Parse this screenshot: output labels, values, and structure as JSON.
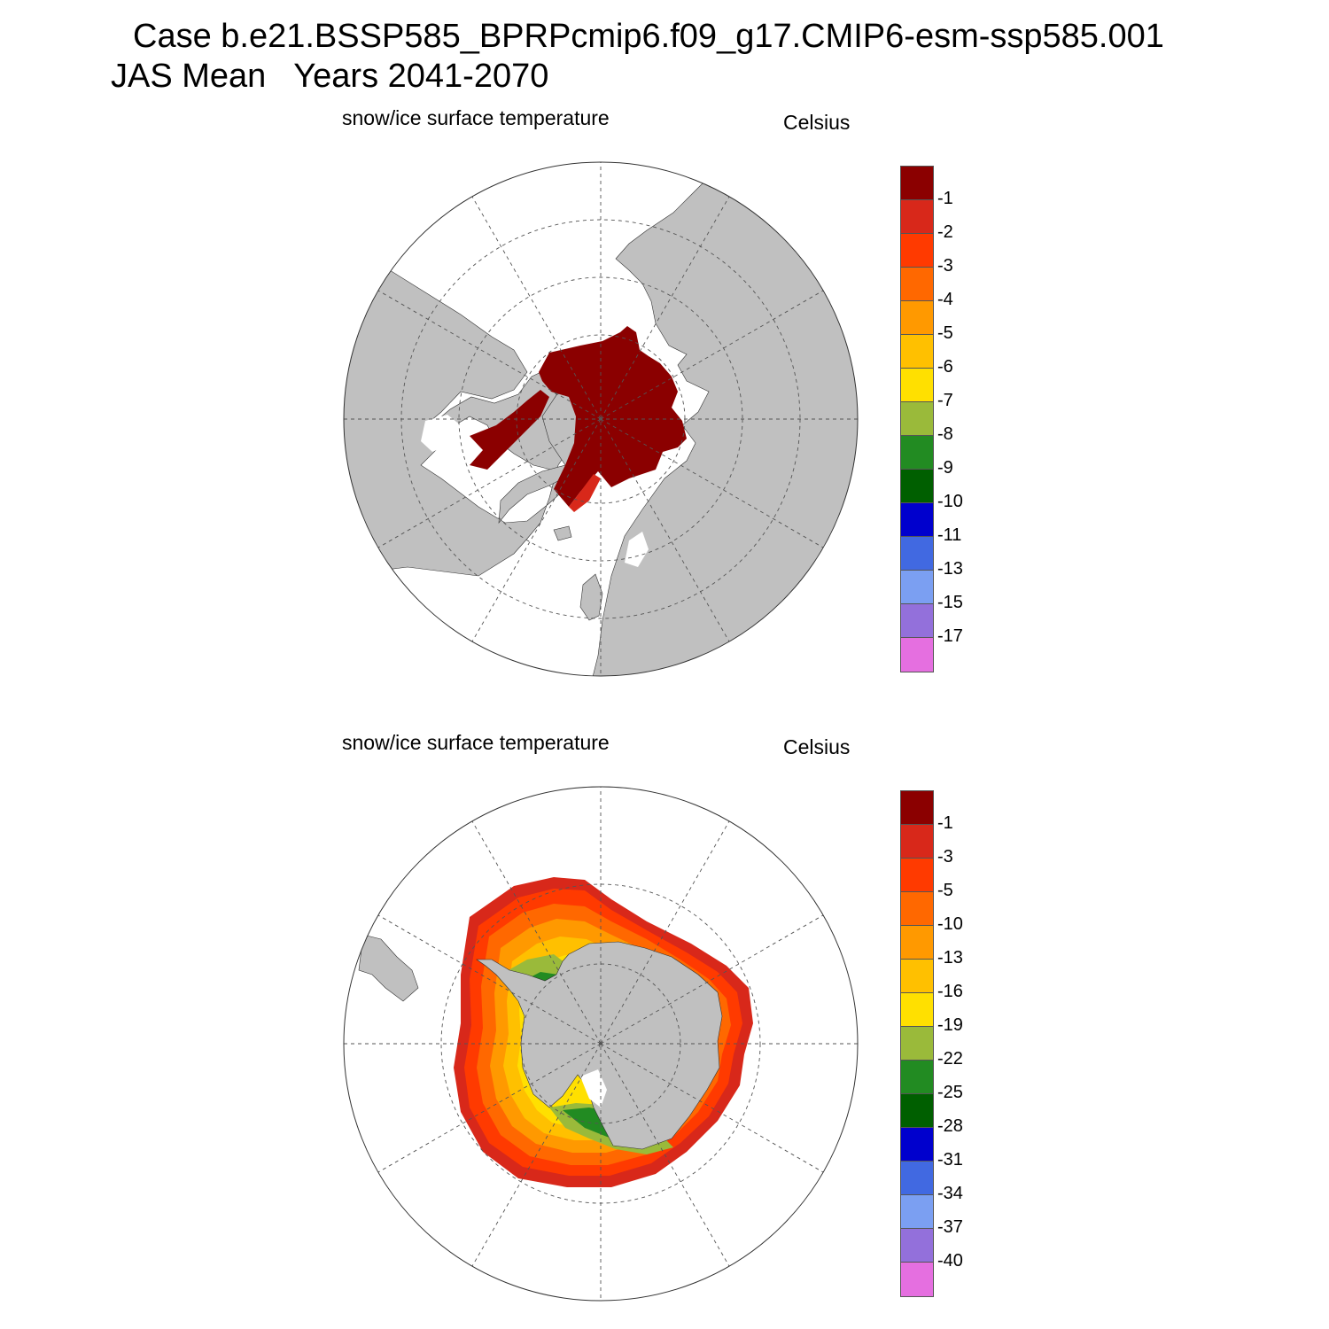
{
  "header": {
    "line1": "Case b.e21.BSSP585_BPRPcmip6.f09_g17.CMIP6-esm-ssp585.001",
    "line2": "JAS Mean   Years 2041-2070"
  },
  "panels": [
    {
      "hemisphere": "north",
      "title": "snow/ice surface temperature",
      "units": "Celsius",
      "colors": [
        "#8b0000",
        "#d8281a",
        "#ff3a00",
        "#ff6800",
        "#ff9900",
        "#ffc000",
        "#ffe000",
        "#9aba3a",
        "#228b22",
        "#005f00",
        "#0000cd",
        "#4169e1",
        "#7b9ff2",
        "#9370db",
        "#e56fe0"
      ],
      "levels": [
        "-1",
        "-2",
        "-3",
        "-4",
        "-5",
        "-6",
        "-7",
        "-8",
        "-9",
        "-10",
        "-11",
        "-13",
        "-15",
        "-17"
      ]
    },
    {
      "hemisphere": "south",
      "title": "snow/ice surface temperature",
      "units": "Celsius",
      "colors": [
        "#8b0000",
        "#d8281a",
        "#ff3a00",
        "#ff6800",
        "#ff9900",
        "#ffc000",
        "#ffe000",
        "#9aba3a",
        "#228b22",
        "#005f00",
        "#0000cd",
        "#4169e1",
        "#7b9ff2",
        "#9370db",
        "#e56fe0"
      ],
      "levels": [
        "-1",
        "-3",
        "-5",
        "-10",
        "-13",
        "-16",
        "-19",
        "-22",
        "-25",
        "-28",
        "-31",
        "-34",
        "-37",
        "-40"
      ]
    }
  ],
  "map_style": {
    "land": "#c0c0c0",
    "ocean": "#ffffff",
    "grid": "#555555"
  }
}
